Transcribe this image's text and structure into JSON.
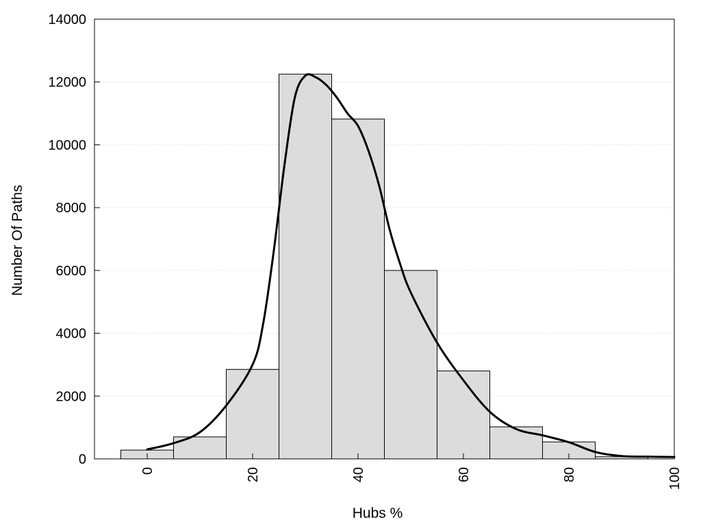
{
  "chart_data": {
    "type": "bar",
    "title": "",
    "xlabel": "Hubs %",
    "ylabel": "Number Of Paths",
    "xlim": [
      -10,
      100
    ],
    "ylim": [
      0,
      14000
    ],
    "grid": true,
    "x_ticks": [
      "0",
      "20",
      "40",
      "60",
      "80",
      "100"
    ],
    "y_ticks": [
      "0",
      "2000",
      "4000",
      "6000",
      "8000",
      "10000",
      "12000",
      "14000"
    ],
    "categories": [
      0,
      10,
      20,
      30,
      40,
      50,
      60,
      70,
      80,
      90
    ],
    "bin_width": 10,
    "values": [
      280,
      700,
      2850,
      12250,
      10820,
      6000,
      2800,
      1020,
      540,
      70
    ],
    "bar_color": "#dcdcdc",
    "curve": {
      "x": [
        0,
        5,
        10,
        15,
        20,
        22,
        24,
        26,
        28,
        30,
        32,
        34,
        36,
        38,
        40,
        42,
        44,
        46,
        48,
        50,
        55,
        60,
        65,
        70,
        75,
        80,
        85,
        90,
        95,
        100
      ],
      "y": [
        300,
        500,
        850,
        1700,
        3000,
        4300,
        6600,
        9300,
        11500,
        12200,
        12150,
        11900,
        11500,
        11000,
        10600,
        9800,
        8700,
        7300,
        6200,
        5300,
        3700,
        2500,
        1500,
        950,
        750,
        530,
        220,
        90,
        70,
        60
      ],
      "color": "#000000"
    }
  }
}
